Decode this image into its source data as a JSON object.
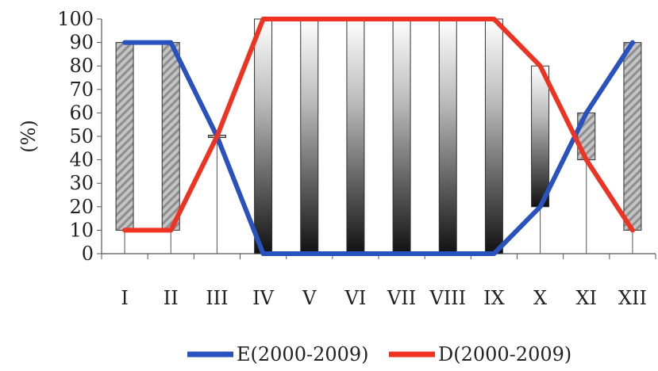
{
  "chart_data": {
    "type": "line",
    "title": "",
    "xlabel": "",
    "ylabel": "(%)",
    "ylim": [
      0,
      100
    ],
    "yticks": [
      0,
      10,
      20,
      30,
      40,
      50,
      60,
      70,
      80,
      90,
      100
    ],
    "categories": [
      "I",
      "II",
      "III",
      "IV",
      "V",
      "VI",
      "VII",
      "VIII",
      "IX",
      "X",
      "XI",
      "XII"
    ],
    "series": [
      {
        "name": "E(2000-2009)",
        "color": "#2a52be",
        "values": [
          90,
          90,
          50,
          0,
          0,
          0,
          0,
          0,
          0,
          20,
          60,
          90
        ]
      },
      {
        "name": "D(2000-2009)",
        "color": "#ee3322",
        "values": [
          10,
          10,
          50,
          100,
          100,
          100,
          100,
          100,
          100,
          80,
          40,
          10
        ]
      }
    ],
    "range_bars": [
      {
        "category": "I",
        "low": 10,
        "high": 90,
        "style": "hatched"
      },
      {
        "category": "II",
        "low": 10,
        "high": 90,
        "style": "hatched"
      },
      {
        "category": "III",
        "low": 49.5,
        "high": 50.5,
        "style": "hatched"
      },
      {
        "category": "IV",
        "low": 0,
        "high": 100,
        "style": "gradient"
      },
      {
        "category": "V",
        "low": 0,
        "high": 100,
        "style": "gradient"
      },
      {
        "category": "VI",
        "low": 0,
        "high": 100,
        "style": "gradient"
      },
      {
        "category": "VII",
        "low": 0,
        "high": 100,
        "style": "gradient"
      },
      {
        "category": "VIII",
        "low": 0,
        "high": 100,
        "style": "gradient"
      },
      {
        "category": "IX",
        "low": 0,
        "high": 100,
        "style": "gradient"
      },
      {
        "category": "X",
        "low": 20,
        "high": 80,
        "style": "gradient"
      },
      {
        "category": "XI",
        "low": 40,
        "high": 60,
        "style": "hatched"
      },
      {
        "category": "XII",
        "low": 10,
        "high": 90,
        "style": "hatched"
      }
    ],
    "grid": false,
    "legend_position": "bottom"
  }
}
